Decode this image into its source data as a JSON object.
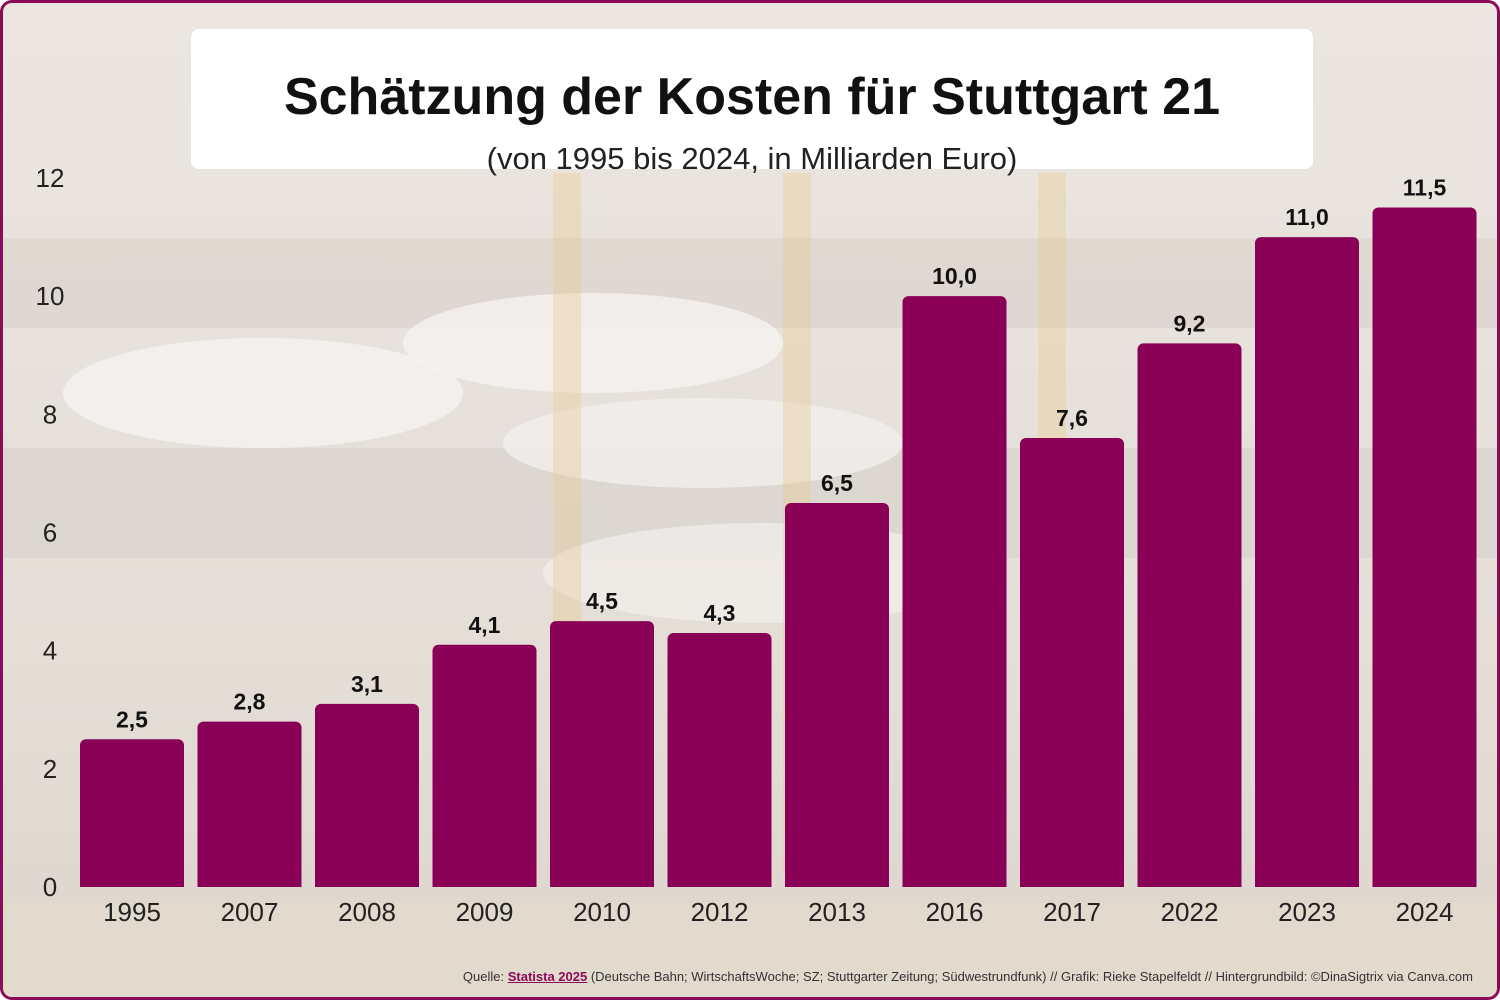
{
  "title": "Schätzung der Kosten für Stuttgart 21",
  "subtitle": "(von 1995 bis 2024, in Milliarden Euro)",
  "source": {
    "prefix": "Quelle: ",
    "highlight": "Statista 2025",
    "rest": " (Deutsche Bahn; WirtschaftsWoche; SZ; Stuttgarter Zeitung; Südwestrundfunk) // Grafik: Rieke Stapelfeldt // Hintergrundbild: ©DinaSigtrix via Canva.com"
  },
  "colors": {
    "bar": "#8a0057",
    "frame": "#8a0b57"
  },
  "chart_data": {
    "type": "bar",
    "categories": [
      "1995",
      "2007",
      "2008",
      "2009",
      "2010",
      "2012",
      "2013",
      "2016",
      "2017",
      "2022",
      "2023",
      "2024"
    ],
    "values": [
      2.5,
      2.8,
      3.1,
      4.1,
      4.5,
      4.3,
      6.5,
      10.0,
      7.6,
      9.2,
      11.0,
      11.5
    ],
    "value_labels": [
      "2,5",
      "2,8",
      "3,1",
      "4,1",
      "4,5",
      "4,3",
      "6,5",
      "10,0",
      "7,6",
      "9,2",
      "11,0",
      "11,5"
    ],
    "y_ticks": [
      0,
      2,
      4,
      6,
      8,
      10,
      12
    ],
    "ylim": [
      0,
      12
    ],
    "grid": false,
    "legend": "none"
  }
}
